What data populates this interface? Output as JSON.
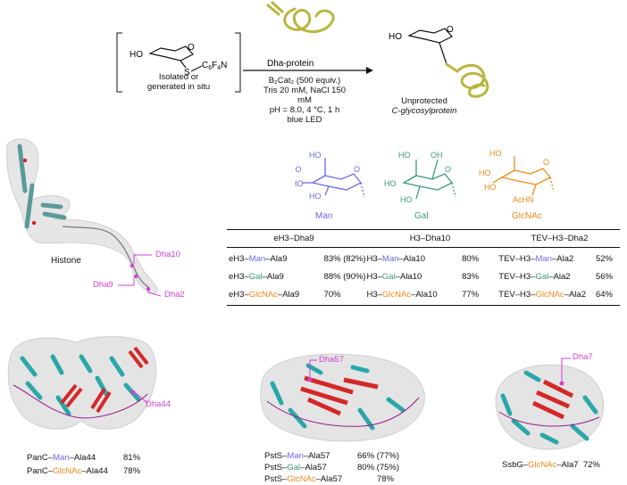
{
  "scheme": {
    "bracket_caption_line1": "Isolated or",
    "bracket_caption_line2": "generated in situ",
    "reagent_label": "Dha-protein",
    "conditions": [
      "B₂Cat₂ (500 equiv.)",
      "Tris 20 mM, NaCl 150 mM",
      "pH = 8.0, 4 °C, 1 h",
      "blue LED"
    ],
    "product_line1": "Unprotected",
    "product_line2": "C-glycosylprotein",
    "s_label": "S",
    "sub_group": "C₆F₄N",
    "ho_label": "HO"
  },
  "sugars": {
    "man": {
      "label": "Man",
      "color": "#6a6ae6"
    },
    "gal": {
      "label": "Gal",
      "color": "#3a9a7a"
    },
    "glcnac": {
      "label": "GlcNAc",
      "color": "#f08a1c",
      "achn": "AcHN"
    },
    "ho": "HO",
    "oh": "OH"
  },
  "histone": {
    "label": "Histone",
    "sites": [
      "Dha10",
      "Dha9",
      "Dha2"
    ]
  },
  "table": {
    "headers": [
      "eH3–Dha9",
      "H3–Dha10",
      "TEV–H3–Dha2"
    ],
    "rows": [
      [
        {
          "pre": "eH3–",
          "sugar": "Man",
          "post": "–Ala9",
          "yield": "83% (82%)"
        },
        {
          "pre": "H3–",
          "sugar": "Man",
          "post": "–Ala10",
          "yield": "80%"
        },
        {
          "pre": "TEV–H3–",
          "sugar": "Man",
          "post": "–Ala2",
          "yield": "52%"
        }
      ],
      [
        {
          "pre": "eH3–",
          "sugar": "Gal",
          "post": "–Ala9",
          "yield": "88% (90%)"
        },
        {
          "pre": "H3–",
          "sugar": "Gal",
          "post": "–Ala10",
          "yield": "83%"
        },
        {
          "pre": "TEV–H3–",
          "sugar": "Gal",
          "post": "–Ala2",
          "yield": "56%"
        }
      ],
      [
        {
          "pre": "eH3–",
          "sugar": "GlcNAc",
          "post": "–Ala9",
          "yield": "70%"
        },
        {
          "pre": "H3–",
          "sugar": "GlcNAc",
          "post": "–Ala10",
          "yield": "77%"
        },
        {
          "pre": "TEV–H3–",
          "sugar": "GlcNAc",
          "post": "–Ala2",
          "yield": "64%"
        }
      ]
    ]
  },
  "proteins": {
    "panc": {
      "site": "Dha44",
      "rows": [
        {
          "pre": "PanC–",
          "sugar": "Man",
          "post": "–Ala44",
          "yield": "81%"
        },
        {
          "pre": "PanC–",
          "sugar": "GlcNAc",
          "post": "–Ala44",
          "yield": "78%"
        }
      ]
    },
    "psts": {
      "site": "Dha57",
      "rows": [
        {
          "pre": "PstS–",
          "sugar": "Man",
          "post": "–Ala57",
          "yield": "66% (77%)"
        },
        {
          "pre": "PstS–",
          "sugar": "Gal",
          "post": "–Ala57",
          "yield": "80% (75%)"
        },
        {
          "pre": "PstS–",
          "sugar": "GlcNAc",
          "post": "–Ala57",
          "yield": "78%"
        }
      ]
    },
    "ssbg": {
      "site": "Dha7",
      "rows": [
        {
          "pre": "SsbG–",
          "sugar": "GlcNAc",
          "post": "–Ala7",
          "yield": "72%"
        }
      ]
    }
  }
}
